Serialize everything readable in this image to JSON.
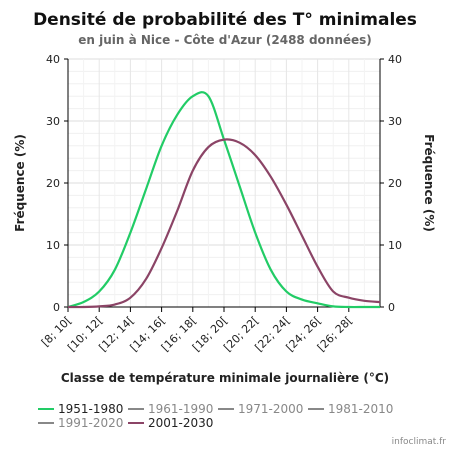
{
  "chart_data": {
    "type": "line",
    "title": "Densité de probabilité des T° minimales",
    "subtitle": "en juin à Nice - Côte d'Azur (2488 données)",
    "xlabel": "Classe de température minimale journalière (°C)",
    "ylabel_left": "Fréquence (%)",
    "ylabel_right": "Fréquence (%)",
    "categories": [
      "[8; 10[",
      "[10; 12[",
      "[12; 14[",
      "[14; 16[",
      "[16; 18[",
      "[18; 20[",
      "[20; 22[",
      "[22; 24[",
      "[24; 26[",
      "[26; 28["
    ],
    "ylim": [
      0,
      40
    ],
    "yticks": [
      0,
      10,
      20,
      30,
      40
    ],
    "grid": true,
    "legend_position": "bottom",
    "series": [
      {
        "name": "1951-1980",
        "color": "#22cc66",
        "x": [
          8,
          9,
          10,
          11,
          12,
          13,
          14,
          15,
          16,
          17,
          18,
          19,
          20,
          21,
          22,
          23,
          24,
          25,
          26,
          27,
          28
        ],
        "values": [
          0,
          0.8,
          2.5,
          6,
          12,
          19,
          26,
          31,
          34,
          34,
          27,
          19.5,
          12,
          6,
          2.5,
          1.2,
          0.6,
          0.1,
          0,
          0,
          0
        ]
      },
      {
        "name": "2001-2030",
        "color": "#8b4466",
        "x": [
          8,
          9,
          10,
          11,
          12,
          13,
          14,
          15,
          16,
          17,
          18,
          19,
          20,
          21,
          22,
          23,
          24,
          25,
          26,
          27,
          28
        ],
        "values": [
          0,
          0,
          0.1,
          0.4,
          1.5,
          4.5,
          9.5,
          15.5,
          22,
          25.8,
          27,
          26.5,
          24.5,
          21,
          16.5,
          11.5,
          6.5,
          2.5,
          1.5,
          1,
          0.8
        ]
      }
    ],
    "legend": [
      {
        "name": "1951-1980",
        "color": "#22cc66",
        "active": true
      },
      {
        "name": "1961-1990",
        "color": "#888888",
        "active": false
      },
      {
        "name": "1971-2000",
        "color": "#888888",
        "active": false
      },
      {
        "name": "1981-2010",
        "color": "#888888",
        "active": false
      },
      {
        "name": "1991-2020",
        "color": "#888888",
        "active": false
      },
      {
        "name": "2001-2030",
        "color": "#8b4466",
        "active": true
      }
    ]
  },
  "watermark": "infoclimat.fr"
}
